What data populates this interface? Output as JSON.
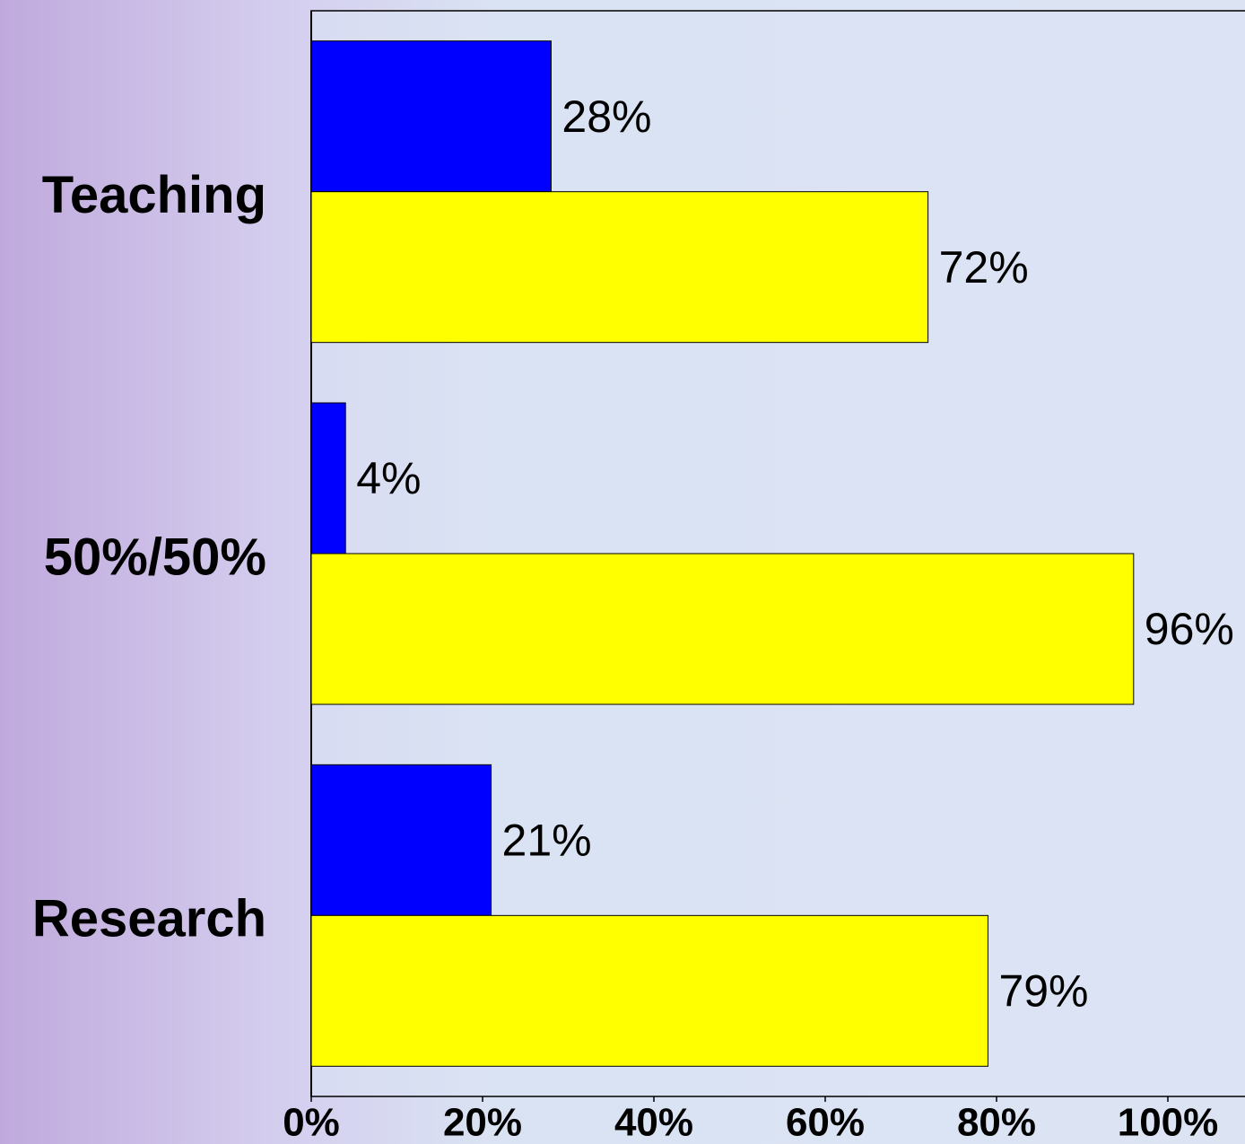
{
  "chart_data": {
    "type": "barh",
    "categories": [
      "Teaching",
      "50%/50%",
      "Research"
    ],
    "series": [
      {
        "color": "#0000ff",
        "values": [
          28,
          4,
          21
        ],
        "value_labels": [
          "28%",
          "4%",
          "21%"
        ]
      },
      {
        "color": "#ffff00",
        "values": [
          72,
          96,
          79
        ],
        "value_labels": [
          "72%",
          "96%",
          "79%"
        ]
      }
    ],
    "xlim": [
      0,
      100
    ],
    "xticks": [
      {
        "value": 0,
        "label": "0%"
      },
      {
        "value": 20,
        "label": "20%"
      },
      {
        "value": 40,
        "label": "40%"
      },
      {
        "value": 60,
        "label": "60%"
      },
      {
        "value": 80,
        "label": "80%"
      },
      {
        "value": 100,
        "label": "100%"
      }
    ]
  }
}
